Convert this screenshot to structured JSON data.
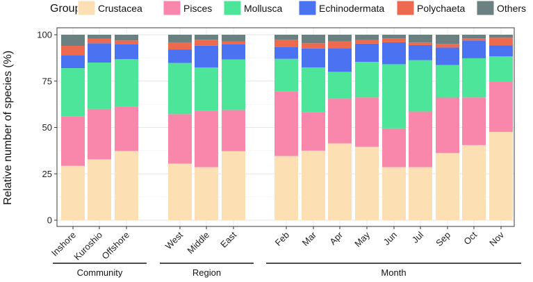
{
  "chart_data": {
    "type": "bar",
    "stacked": true,
    "legend": {
      "title": "Group",
      "placement": "top",
      "entries": [
        {
          "name": "Crustacea",
          "color": "#FDDFB4"
        },
        {
          "name": "Pisces",
          "color": "#F987AB"
        },
        {
          "name": "Mollusca",
          "color": "#4DE59A"
        },
        {
          "name": "Echinodermata",
          "color": "#4B72F0"
        },
        {
          "name": "Polychaeta",
          "color": "#EE6A4F"
        },
        {
          "name": "Others",
          "color": "#6A8081"
        }
      ]
    },
    "ylabel": "Relative number of species (%)",
    "ylim": [
      0,
      100
    ],
    "yticks": [
      0,
      25,
      50,
      75,
      100
    ],
    "grid": true,
    "categories": [
      "Inshore",
      "Kuroshio",
      "Offshore",
      "West",
      "Middle",
      "East",
      "Feb",
      "Mar",
      "Apr",
      "May",
      "Jun",
      "Jul",
      "Sep",
      "Oct",
      "Nov"
    ],
    "category_groups": [
      {
        "label": "Community",
        "categories": [
          "Inshore",
          "Kuroshio",
          "Offshore"
        ]
      },
      {
        "label": "Region",
        "categories": [
          "West",
          "Middle",
          "East"
        ]
      },
      {
        "label": "Month",
        "categories": [
          "Feb",
          "Mar",
          "Apr",
          "May",
          "Jun",
          "Jul",
          "Sep",
          "Oct",
          "Nov"
        ]
      }
    ],
    "series": [
      {
        "name": "Crustacea",
        "values": [
          29.3,
          32.8,
          37.3,
          30.5,
          28.6,
          37.2,
          34.6,
          37.5,
          41.4,
          39.6,
          28.6,
          28.6,
          36.2,
          40.5,
          47.6
        ]
      },
      {
        "name": "Pisces",
        "values": [
          26.8,
          27.2,
          23.9,
          26.7,
          30.5,
          22.2,
          35.0,
          20.6,
          24.1,
          26.6,
          20.9,
          30.0,
          29.9,
          25.7,
          27.1
        ]
      },
      {
        "name": "Mollusca",
        "values": [
          25.9,
          25.0,
          25.6,
          27.6,
          23.2,
          27.3,
          17.4,
          24.3,
          14.5,
          19.2,
          34.6,
          27.7,
          17.6,
          21.1,
          13.6
        ]
      },
      {
        "name": "Echinodermata",
        "values": [
          7.0,
          10.4,
          8.1,
          7.3,
          11.8,
          8.2,
          6.4,
          10.2,
          12.8,
          9.8,
          11.8,
          8.1,
          9.4,
          9.6,
          5.9
        ]
      },
      {
        "name": "Polychaeta",
        "values": [
          5.0,
          2.4,
          2.0,
          3.8,
          3.2,
          1.5,
          4.0,
          2.8,
          3.6,
          1.9,
          2.2,
          1.4,
          2.0,
          1.1,
          4.2
        ]
      },
      {
        "name": "Others",
        "values": [
          6.0,
          2.2,
          3.1,
          4.1,
          2.7,
          3.6,
          2.6,
          4.6,
          3.6,
          2.9,
          1.9,
          4.2,
          4.9,
          2.0,
          1.6
        ]
      }
    ]
  }
}
